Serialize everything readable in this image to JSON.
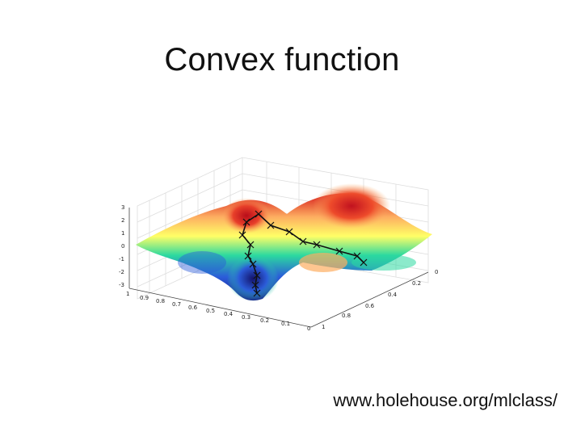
{
  "slide": {
    "title": "Convex function",
    "caption": "www.holehouse.org/mlclass/"
  },
  "plot": {
    "z_ticks": [
      "3",
      "2",
      "1",
      "0",
      "-1",
      "-2",
      "-3"
    ],
    "x_ticks": [
      "1",
      "0.9",
      "0.8",
      "0.7",
      "0.6",
      "0.5",
      "0.4",
      "0.3",
      "0.2",
      "0.1",
      "0"
    ],
    "y_ticks": [
      "0",
      "0.2",
      "0.4",
      "0.6",
      "0.8",
      "1"
    ],
    "colors": {
      "high": "#d7191c",
      "mid_high": "#fdae61",
      "mid": "#ffff66",
      "mid_low": "#2bd9a0",
      "low": "#2b5cd9",
      "deep": "#1b1f8a",
      "path": "#111111",
      "grid": "#dddddd"
    }
  }
}
